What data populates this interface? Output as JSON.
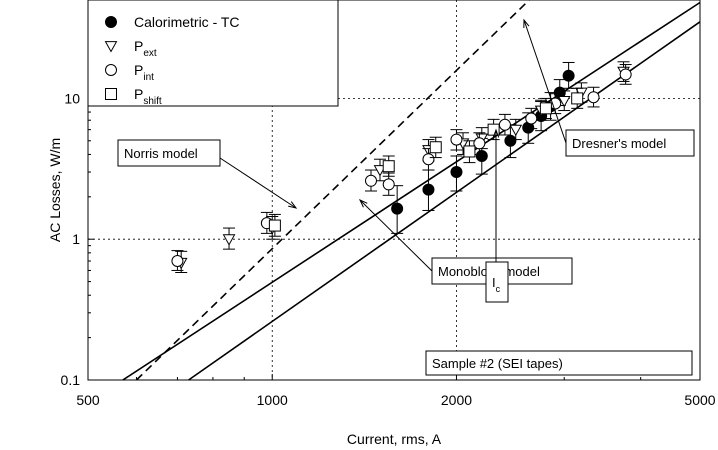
{
  "chart_data": {
    "type": "scatter",
    "xlabel": "Current, rms, A",
    "ylabel": "AC Losses, W/m",
    "x_scale": "log",
    "y_scale": "log",
    "xlim": [
      500,
      5000
    ],
    "ylim": [
      0.1,
      50
    ],
    "x_ticks": [
      {
        "value": 500,
        "label": "500"
      },
      {
        "value": 1000,
        "label": "1000"
      },
      {
        "value": 2000,
        "label": "2000"
      },
      {
        "value": 5000,
        "label": "5000"
      }
    ],
    "y_ticks": [
      {
        "value": 0.1,
        "label": "0.1"
      },
      {
        "value": 1,
        "label": "1"
      },
      {
        "value": 10,
        "label": "10"
      }
    ],
    "gridlines": {
      "x": [
        1000,
        2000
      ],
      "y": [
        1,
        10
      ],
      "style": "dotted"
    },
    "legend": {
      "position": "top-left",
      "entries": [
        {
          "marker": "filled-circle",
          "text": "Calorimetric - TC",
          "sub": ""
        },
        {
          "marker": "triangle-down",
          "text": "P",
          "sub": "ext"
        },
        {
          "marker": "circle",
          "text": "P",
          "sub": "int"
        },
        {
          "marker": "square",
          "text": "P",
          "sub": "shift"
        }
      ]
    },
    "series": [
      {
        "name": "Calorimetric - TC",
        "marker": "filled-circle",
        "points": [
          {
            "x": 1600,
            "y": 1.65,
            "lo": 1.1,
            "hi": 2.4
          },
          {
            "x": 1800,
            "y": 2.25,
            "lo": 1.6,
            "hi": 3.1
          },
          {
            "x": 2000,
            "y": 3.0,
            "lo": 2.2,
            "hi": 3.9
          },
          {
            "x": 2200,
            "y": 3.9,
            "lo": 2.9,
            "hi": 5.2
          },
          {
            "x": 2450,
            "y": 5.0,
            "lo": 3.8,
            "hi": 6.5
          },
          {
            "x": 2620,
            "y": 6.2,
            "lo": 4.8,
            "hi": 7.9
          },
          {
            "x": 2750,
            "y": 7.5,
            "lo": 5.9,
            "hi": 9.5
          },
          {
            "x": 2850,
            "y": 8.8,
            "lo": 7.0,
            "hi": 11.0
          },
          {
            "x": 2950,
            "y": 11.0,
            "lo": 8.9,
            "hi": 13.6
          },
          {
            "x": 3050,
            "y": 14.5,
            "lo": 11.8,
            "hi": 18.0
          }
        ]
      },
      {
        "name": "Pext",
        "marker": "triangle-down",
        "points": [
          {
            "x": 710,
            "y": 0.68,
            "lo": 0.58,
            "hi": 0.82
          },
          {
            "x": 850,
            "y": 1.0,
            "lo": 0.85,
            "hi": 1.2
          },
          {
            "x": 1000,
            "y": 1.2,
            "lo": 1.0,
            "hi": 1.45
          },
          {
            "x": 1500,
            "y": 3.1,
            "lo": 2.6,
            "hi": 3.7
          },
          {
            "x": 1800,
            "y": 4.3,
            "lo": 3.6,
            "hi": 5.1
          },
          {
            "x": 2050,
            "y": 4.8,
            "lo": 4.0,
            "hi": 5.7
          },
          {
            "x": 2200,
            "y": 5.2,
            "lo": 4.4,
            "hi": 6.2
          },
          {
            "x": 2500,
            "y": 6.0,
            "lo": 5.1,
            "hi": 7.1
          },
          {
            "x": 2750,
            "y": 8.2,
            "lo": 7.0,
            "hi": 9.7
          },
          {
            "x": 3000,
            "y": 9.6,
            "lo": 8.2,
            "hi": 11.3
          },
          {
            "x": 3200,
            "y": 11.0,
            "lo": 9.4,
            "hi": 12.9
          },
          {
            "x": 3750,
            "y": 15.5,
            "lo": 13.2,
            "hi": 18.2
          }
        ]
      },
      {
        "name": "Pint",
        "marker": "circle",
        "points": [
          {
            "x": 700,
            "y": 0.7,
            "lo": 0.6,
            "hi": 0.83
          },
          {
            "x": 980,
            "y": 1.3,
            "lo": 1.1,
            "hi": 1.55
          },
          {
            "x": 1450,
            "y": 2.6,
            "lo": 2.2,
            "hi": 3.1
          },
          {
            "x": 1550,
            "y": 2.45,
            "lo": 2.05,
            "hi": 2.95
          },
          {
            "x": 1800,
            "y": 3.7,
            "lo": 3.1,
            "hi": 4.4
          },
          {
            "x": 2000,
            "y": 5.1,
            "lo": 4.3,
            "hi": 6.0
          },
          {
            "x": 2180,
            "y": 4.8,
            "lo": 4.0,
            "hi": 5.7
          },
          {
            "x": 2400,
            "y": 6.5,
            "lo": 5.5,
            "hi": 7.7
          },
          {
            "x": 2650,
            "y": 7.2,
            "lo": 6.1,
            "hi": 8.5
          },
          {
            "x": 2900,
            "y": 9.2,
            "lo": 7.8,
            "hi": 10.8
          },
          {
            "x": 3350,
            "y": 10.2,
            "lo": 8.7,
            "hi": 12.0
          },
          {
            "x": 3780,
            "y": 14.8,
            "lo": 12.6,
            "hi": 17.4
          }
        ]
      },
      {
        "name": "Pshift",
        "marker": "square",
        "points": [
          {
            "x": 1010,
            "y": 1.25,
            "lo": 1.05,
            "hi": 1.5
          },
          {
            "x": 1550,
            "y": 3.3,
            "lo": 2.8,
            "hi": 3.9
          },
          {
            "x": 1850,
            "y": 4.5,
            "lo": 3.8,
            "hi": 5.3
          },
          {
            "x": 2100,
            "y": 4.2,
            "lo": 3.5,
            "hi": 5.0
          },
          {
            "x": 2300,
            "y": 6.0,
            "lo": 5.1,
            "hi": 7.1
          },
          {
            "x": 2800,
            "y": 8.5,
            "lo": 7.2,
            "hi": 10.0
          },
          {
            "x": 3150,
            "y": 10.0,
            "lo": 8.5,
            "hi": 11.8
          }
        ]
      }
    ],
    "model_lines": [
      {
        "name": "Norris model",
        "style": "dashed",
        "points": [
          {
            "x": 600,
            "y": 0.1
          },
          {
            "x": 2630,
            "y": 50
          }
        ]
      },
      {
        "name": "Dresner's model",
        "style": "solid",
        "points": [
          {
            "x": 570,
            "y": 0.1
          },
          {
            "x": 5000,
            "y": 48
          }
        ]
      },
      {
        "name": "Monoblock model",
        "style": "solid",
        "points": [
          {
            "x": 730,
            "y": 0.1
          },
          {
            "x": 5000,
            "y": 35
          }
        ]
      }
    ],
    "annotations": [
      {
        "id": "norris",
        "text": "Norris model",
        "sub": ""
      },
      {
        "id": "dresner",
        "text": "Dresner's model",
        "sub": ""
      },
      {
        "id": "monoblock",
        "text": "Monoblock model",
        "sub": ""
      },
      {
        "id": "ic",
        "text": "I",
        "sub": "c"
      },
      {
        "id": "sample",
        "text": "Sample #2 (SEI tapes)",
        "sub": ""
      }
    ]
  }
}
